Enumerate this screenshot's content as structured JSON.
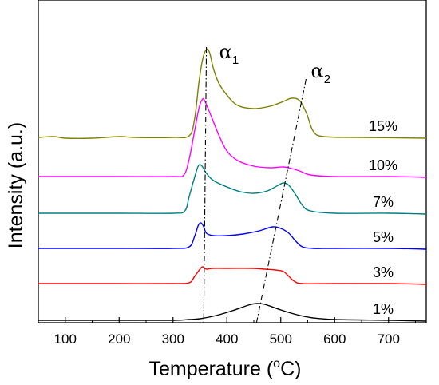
{
  "chart_data": {
    "type": "line",
    "title": "",
    "xlabel": "Temperature",
    "xlabel_unit": "(°C)",
    "ylabel": "Intensity (a.u.)",
    "xlim": [
      50,
      770
    ],
    "x_ticks": [
      100,
      200,
      300,
      400,
      500,
      600,
      700
    ],
    "y_ticks_shown": false,
    "grid": false,
    "legend": "inline-right",
    "series": [
      {
        "name": "1%",
        "color": "#000000",
        "points": [
          [
            50,
            3
          ],
          [
            100,
            3
          ],
          [
            200,
            3
          ],
          [
            300,
            3
          ],
          [
            330,
            4
          ],
          [
            350,
            5
          ],
          [
            380,
            9
          ],
          [
            410,
            15
          ],
          [
            440,
            22
          ],
          [
            455,
            24
          ],
          [
            470,
            23
          ],
          [
            500,
            16
          ],
          [
            530,
            10
          ],
          [
            560,
            6
          ],
          [
            600,
            4
          ],
          [
            700,
            3
          ],
          [
            770,
            2
          ]
        ]
      },
      {
        "name": "3%",
        "color": "#ff0000",
        "points": [
          [
            50,
            49
          ],
          [
            100,
            49
          ],
          [
            200,
            49
          ],
          [
            300,
            49
          ],
          [
            330,
            50
          ],
          [
            340,
            58
          ],
          [
            350,
            67
          ],
          [
            355,
            70
          ],
          [
            362,
            67
          ],
          [
            372,
            68
          ],
          [
            400,
            68
          ],
          [
            450,
            68
          ],
          [
            470,
            67
          ],
          [
            490,
            66
          ],
          [
            505,
            64
          ],
          [
            515,
            58
          ],
          [
            525,
            52
          ],
          [
            540,
            49
          ],
          [
            600,
            49
          ],
          [
            700,
            49
          ],
          [
            770,
            48
          ]
        ]
      },
      {
        "name": "5%",
        "color": "#0000ff",
        "points": [
          [
            50,
            93
          ],
          [
            100,
            93
          ],
          [
            200,
            93
          ],
          [
            300,
            93
          ],
          [
            330,
            95
          ],
          [
            340,
            108
          ],
          [
            347,
            122
          ],
          [
            352,
            125
          ],
          [
            357,
            120
          ],
          [
            362,
            112
          ],
          [
            375,
            109
          ],
          [
            400,
            109
          ],
          [
            430,
            111
          ],
          [
            460,
            115
          ],
          [
            485,
            120
          ],
          [
            500,
            118
          ],
          [
            515,
            112
          ],
          [
            528,
            102
          ],
          [
            540,
            95
          ],
          [
            560,
            93
          ],
          [
            600,
            93
          ],
          [
            700,
            93
          ],
          [
            770,
            92
          ]
        ]
      },
      {
        "name": "7%",
        "color": "#008080",
        "points": [
          [
            50,
            137
          ],
          [
            100,
            137
          ],
          [
            200,
            137
          ],
          [
            300,
            137
          ],
          [
            322,
            140
          ],
          [
            330,
            158
          ],
          [
            340,
            182
          ],
          [
            346,
            195
          ],
          [
            350,
            198
          ],
          [
            355,
            195
          ],
          [
            362,
            187
          ],
          [
            375,
            178
          ],
          [
            400,
            170
          ],
          [
            425,
            164
          ],
          [
            450,
            162
          ],
          [
            475,
            165
          ],
          [
            495,
            172
          ],
          [
            505,
            175
          ],
          [
            515,
            172
          ],
          [
            528,
            160
          ],
          [
            540,
            147
          ],
          [
            555,
            140
          ],
          [
            600,
            137
          ],
          [
            700,
            137
          ],
          [
            770,
            136
          ]
        ]
      },
      {
        "name": "10%",
        "color": "#ff00ff",
        "points": [
          [
            50,
            183
          ],
          [
            100,
            183
          ],
          [
            200,
            183
          ],
          [
            300,
            183
          ],
          [
            320,
            185
          ],
          [
            330,
            205
          ],
          [
            340,
            240
          ],
          [
            348,
            268
          ],
          [
            355,
            280
          ],
          [
            360,
            276
          ],
          [
            370,
            260
          ],
          [
            385,
            235
          ],
          [
            400,
            215
          ],
          [
            420,
            203
          ],
          [
            450,
            196
          ],
          [
            480,
            194
          ],
          [
            505,
            195
          ],
          [
            520,
            193
          ],
          [
            535,
            190
          ],
          [
            555,
            185
          ],
          [
            600,
            183
          ],
          [
            700,
            183
          ],
          [
            770,
            182
          ]
        ]
      },
      {
        "name": "15%",
        "color": "#808000",
        "points": [
          [
            50,
            232
          ],
          [
            80,
            233
          ],
          [
            100,
            231
          ],
          [
            150,
            231
          ],
          [
            200,
            233
          ],
          [
            230,
            232
          ],
          [
            300,
            232
          ],
          [
            330,
            234
          ],
          [
            340,
            255
          ],
          [
            348,
            300
          ],
          [
            355,
            330
          ],
          [
            362,
            342
          ],
          [
            368,
            338
          ],
          [
            375,
            318
          ],
          [
            385,
            300
          ],
          [
            400,
            285
          ],
          [
            420,
            272
          ],
          [
            450,
            268
          ],
          [
            480,
            271
          ],
          [
            505,
            277
          ],
          [
            520,
            281
          ],
          [
            535,
            278
          ],
          [
            548,
            262
          ],
          [
            560,
            240
          ],
          [
            580,
            233
          ],
          [
            650,
            232
          ],
          [
            770,
            231
          ]
        ]
      }
    ],
    "annotations": [
      {
        "label": "α",
        "subscript": "1",
        "line": [
          [
            362,
            345
          ],
          [
            357,
            0
          ]
        ]
      },
      {
        "label": "α",
        "subscript": "2",
        "line": [
          [
            547,
            305
          ],
          [
            455,
            0
          ]
        ]
      }
    ]
  }
}
